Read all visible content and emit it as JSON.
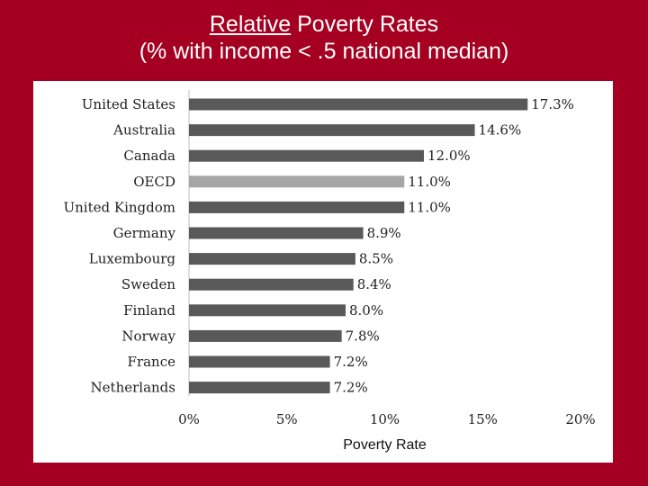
{
  "slide": {
    "title_underlined": "Relative",
    "title_rest": " Poverty Rates",
    "subtitle": "(% with income < .5 national median)",
    "background_color": "#a50021"
  },
  "chart_data": {
    "type": "bar",
    "orientation": "horizontal",
    "title": "Relative Poverty Rates (% with income < .5 national median)",
    "categories": [
      "United States",
      "Australia",
      "Canada",
      "OECD",
      "United Kingdom",
      "Germany",
      "Luxembourg",
      "Sweden",
      "Finland",
      "Norway",
      "France",
      "Netherlands"
    ],
    "values": [
      17.3,
      14.6,
      12.0,
      11.0,
      11.0,
      8.9,
      8.5,
      8.4,
      8.0,
      7.8,
      7.2,
      7.2
    ],
    "value_labels": [
      "17.3%",
      "14.6%",
      "12.0%",
      "11.0%",
      "11.0%",
      "8.9%",
      "8.5%",
      "8.4%",
      "8.0%",
      "7.8%",
      "7.2%",
      "7.2%"
    ],
    "highlight": "OECD",
    "bar_color": "#595959",
    "highlight_color": "#a6a6a6",
    "xlabel": "Poverty Rate",
    "ylabel": "",
    "xlim": [
      0,
      20
    ],
    "xticks": [
      0,
      5,
      10,
      15,
      20
    ],
    "xtick_labels": [
      "0%",
      "5%",
      "10%",
      "15%",
      "20%"
    ],
    "grid": false
  }
}
